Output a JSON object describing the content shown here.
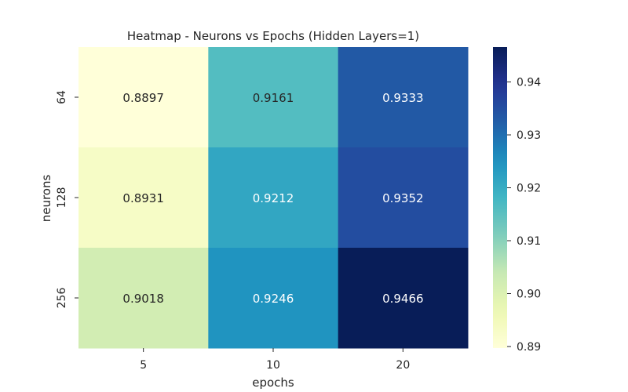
{
  "chart_data": {
    "type": "heatmap",
    "title": "Heatmap - Neurons vs Epochs (Hidden Layers=1)",
    "xlabel": "epochs",
    "ylabel": "neurons",
    "x_categories": [
      "5",
      "10",
      "20"
    ],
    "y_categories": [
      "64",
      "128",
      "256"
    ],
    "values": [
      [
        0.8897,
        0.9161,
        0.9333
      ],
      [
        0.8931,
        0.9212,
        0.9352
      ],
      [
        0.9018,
        0.9246,
        0.9466
      ]
    ],
    "value_labels": [
      [
        "0.8897",
        "0.9161",
        "0.9333"
      ],
      [
        "0.8931",
        "0.9212",
        "0.9352"
      ],
      [
        "0.9018",
        "0.9246",
        "0.9466"
      ]
    ],
    "colormap": "YlGnBu",
    "vmin": 0.8897,
    "vmax": 0.9466,
    "colorbar_ticks": [
      0.89,
      0.9,
      0.91,
      0.92,
      0.93,
      0.94
    ],
    "colorbar_tick_labels": [
      "0.89",
      "0.90",
      "0.91",
      "0.92",
      "0.93",
      "0.94"
    ],
    "grid": false,
    "colorbar": "right"
  }
}
